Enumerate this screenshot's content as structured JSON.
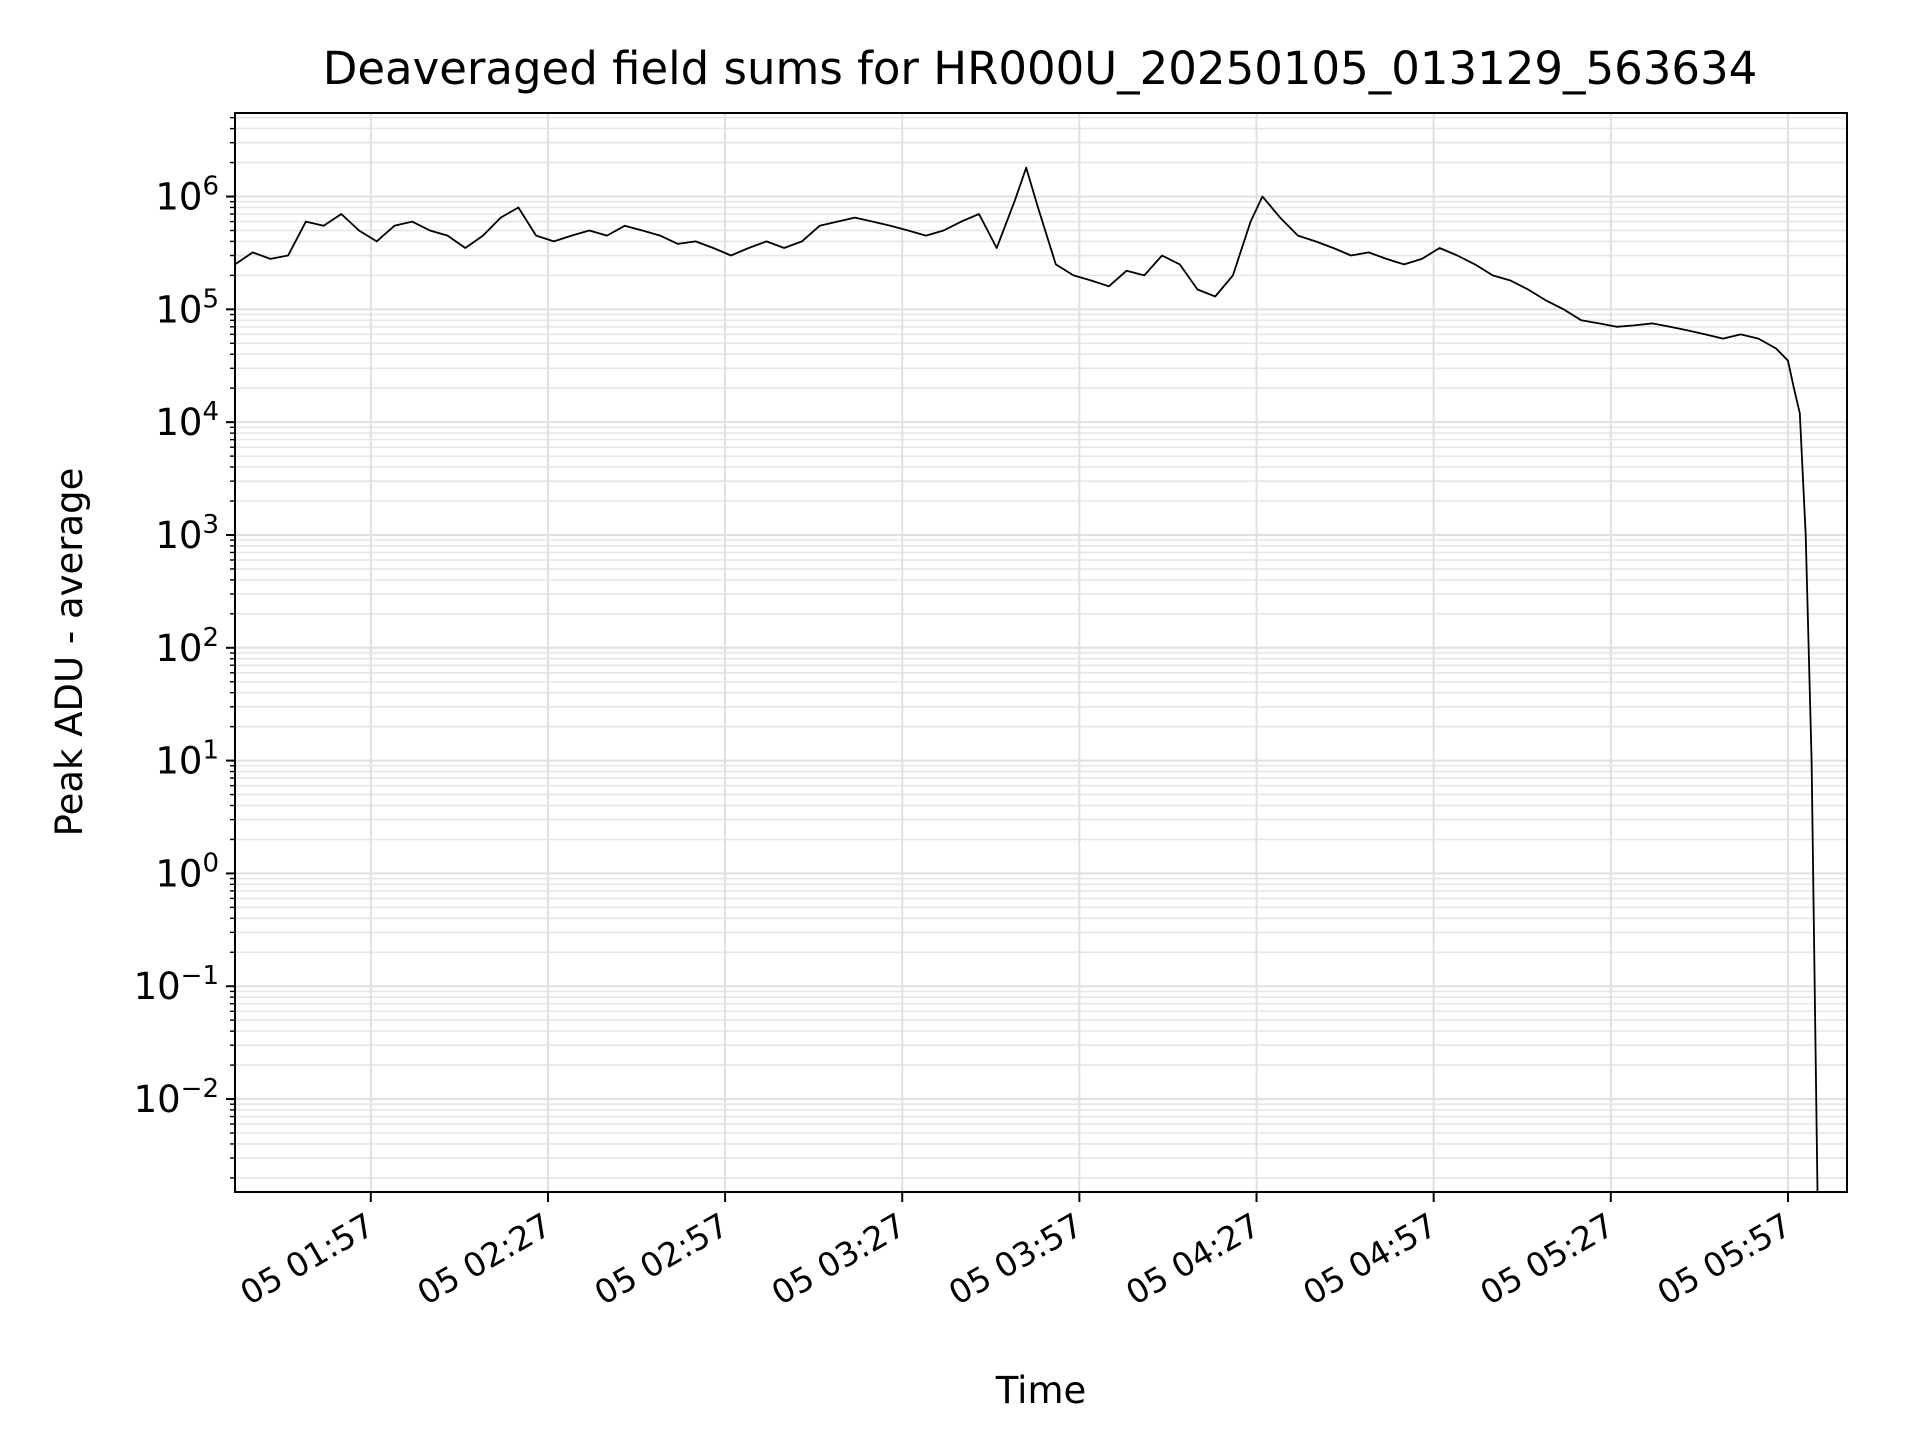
{
  "chart_data": {
    "type": "line",
    "title": "Deaveraged field sums for HR000U_20250105_013129_563634",
    "xlabel": "Time",
    "ylabel": "Peak ADU - average",
    "yscale": "log",
    "ylim": [
      0.0015,
      5500000
    ],
    "xlim": [
      "05 01:34",
      "06:07"
    ],
    "grid": "major and minor, both axes",
    "line_color": "#000000",
    "x_ticks": [
      {
        "time": "01:57",
        "label": "05 01:57"
      },
      {
        "time": "02:27",
        "label": "05 02:27"
      },
      {
        "time": "02:57",
        "label": "05 02:57"
      },
      {
        "time": "03:27",
        "label": "05 03:27"
      },
      {
        "time": "03:57",
        "label": "05 03:57"
      },
      {
        "time": "04:27",
        "label": "05 04:27"
      },
      {
        "time": "04:57",
        "label": "05 04:57"
      },
      {
        "time": "05:27",
        "label": "05 05:27"
      },
      {
        "time": "05:57",
        "label": "05 05:57"
      }
    ],
    "y_ticks": [
      {
        "exp": -2,
        "base": "10",
        "sup": "−2"
      },
      {
        "exp": -1,
        "base": "10",
        "sup": "−1"
      },
      {
        "exp": 0,
        "base": "10",
        "sup": "0"
      },
      {
        "exp": 1,
        "base": "10",
        "sup": "1"
      },
      {
        "exp": 2,
        "base": "10",
        "sup": "2"
      },
      {
        "exp": 3,
        "base": "10",
        "sup": "3"
      },
      {
        "exp": 4,
        "base": "10",
        "sup": "4"
      },
      {
        "exp": 5,
        "base": "10",
        "sup": "5"
      },
      {
        "exp": 6,
        "base": "10",
        "sup": "6"
      }
    ],
    "series": [
      {
        "points": [
          [
            "01:34",
            250000
          ],
          [
            "01:37",
            320000
          ],
          [
            "01:40",
            280000
          ],
          [
            "01:43",
            300000
          ],
          [
            "01:46",
            600000
          ],
          [
            "01:49",
            550000
          ],
          [
            "01:52",
            700000
          ],
          [
            "01:55",
            500000
          ],
          [
            "01:58",
            400000
          ],
          [
            "02:01",
            550000
          ],
          [
            "02:04",
            600000
          ],
          [
            "02:07",
            500000
          ],
          [
            "02:10",
            450000
          ],
          [
            "02:13",
            350000
          ],
          [
            "02:16",
            450000
          ],
          [
            "02:19",
            650000
          ],
          [
            "02:22",
            800000
          ],
          [
            "02:25",
            450000
          ],
          [
            "02:28",
            400000
          ],
          [
            "02:31",
            450000
          ],
          [
            "02:34",
            500000
          ],
          [
            "02:37",
            450000
          ],
          [
            "02:40",
            550000
          ],
          [
            "02:43",
            500000
          ],
          [
            "02:46",
            450000
          ],
          [
            "02:49",
            380000
          ],
          [
            "02:52",
            400000
          ],
          [
            "02:55",
            350000
          ],
          [
            "02:58",
            300000
          ],
          [
            "03:01",
            350000
          ],
          [
            "03:04",
            400000
          ],
          [
            "03:07",
            350000
          ],
          [
            "03:10",
            400000
          ],
          [
            "03:13",
            550000
          ],
          [
            "03:16",
            600000
          ],
          [
            "03:19",
            650000
          ],
          [
            "03:22",
            600000
          ],
          [
            "03:25",
            550000
          ],
          [
            "03:28",
            500000
          ],
          [
            "03:31",
            450000
          ],
          [
            "03:34",
            500000
          ],
          [
            "03:37",
            600000
          ],
          [
            "03:40",
            700000
          ],
          [
            "03:43",
            350000
          ],
          [
            "03:46",
            900000
          ],
          [
            "03:48",
            1800000
          ],
          [
            "03:50",
            800000
          ],
          [
            "03:53",
            250000
          ],
          [
            "03:56",
            200000
          ],
          [
            "03:59",
            180000
          ],
          [
            "04:02",
            160000
          ],
          [
            "04:05",
            220000
          ],
          [
            "04:08",
            200000
          ],
          [
            "04:11",
            300000
          ],
          [
            "04:14",
            250000
          ],
          [
            "04:17",
            150000
          ],
          [
            "04:20",
            130000
          ],
          [
            "04:23",
            200000
          ],
          [
            "04:26",
            600000
          ],
          [
            "04:28",
            1000000
          ],
          [
            "04:31",
            650000
          ],
          [
            "04:34",
            450000
          ],
          [
            "04:37",
            400000
          ],
          [
            "04:40",
            350000
          ],
          [
            "04:43",
            300000
          ],
          [
            "04:46",
            320000
          ],
          [
            "04:49",
            280000
          ],
          [
            "04:52",
            250000
          ],
          [
            "04:55",
            280000
          ],
          [
            "04:58",
            350000
          ],
          [
            "05:01",
            300000
          ],
          [
            "05:04",
            250000
          ],
          [
            "05:07",
            200000
          ],
          [
            "05:10",
            180000
          ],
          [
            "05:13",
            150000
          ],
          [
            "05:16",
            120000
          ],
          [
            "05:19",
            100000
          ],
          [
            "05:22",
            80000
          ],
          [
            "05:25",
            75000
          ],
          [
            "05:28",
            70000
          ],
          [
            "05:31",
            72000
          ],
          [
            "05:34",
            75000
          ],
          [
            "05:37",
            70000
          ],
          [
            "05:40",
            65000
          ],
          [
            "05:43",
            60000
          ],
          [
            "05:46",
            55000
          ],
          [
            "05:49",
            60000
          ],
          [
            "05:52",
            55000
          ],
          [
            "05:55",
            45000
          ],
          [
            "05:57",
            35000
          ],
          [
            "05:58",
            20000
          ],
          [
            "05:59",
            12000
          ],
          [
            "06:00",
            1000
          ],
          [
            "06:01",
            10
          ],
          [
            "06:02",
            0.0015
          ]
        ]
      }
    ]
  }
}
